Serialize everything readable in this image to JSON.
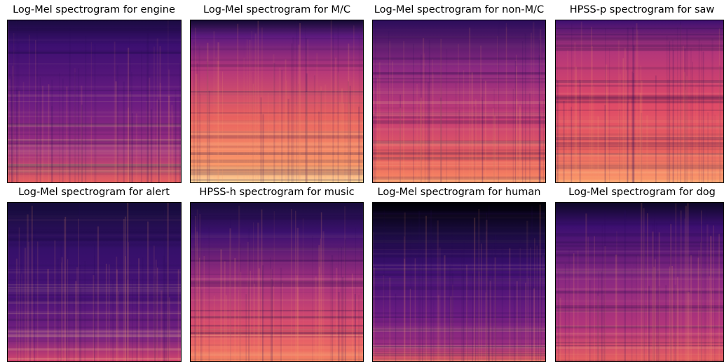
{
  "panels": [
    {
      "title": "Log-Mel spectrogram for engine"
    },
    {
      "title": "Log-Mel spectrogram for M/C"
    },
    {
      "title": "Log-Mel spectrogram for non-M/C"
    },
    {
      "title": "HPSS-p spectrogram for saw"
    },
    {
      "title": "Log-Mel spectrogram for alert"
    },
    {
      "title": "HPSS-h spectrogram for music"
    },
    {
      "title": "Log-Mel spectrogram for human"
    },
    {
      "title": "Log-Mel spectrogram for dog"
    }
  ]
}
